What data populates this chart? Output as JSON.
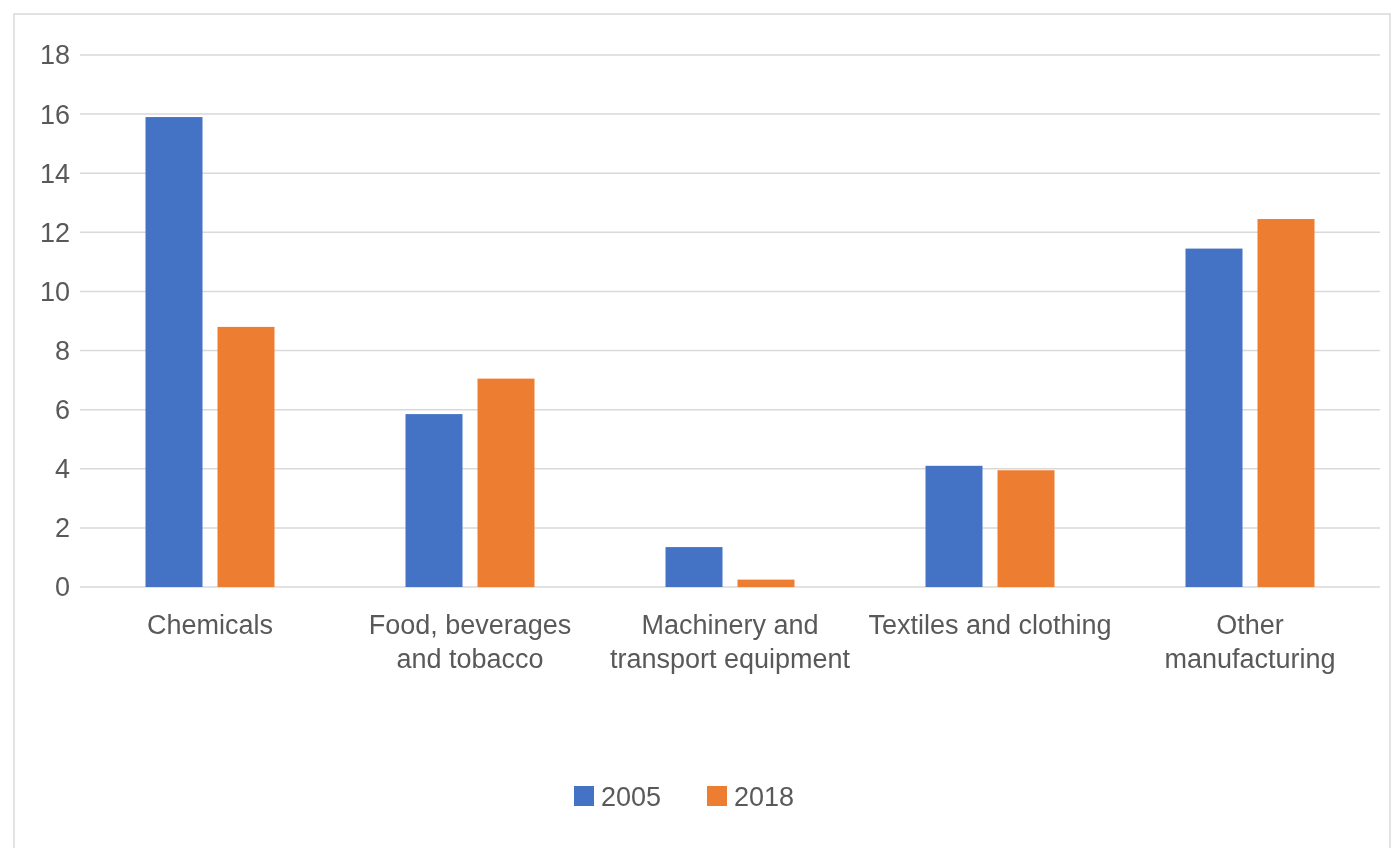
{
  "chart_data": {
    "type": "bar",
    "categories": [
      "Chemicals",
      "Food, beverages and tobacco",
      "Machinery and transport equipment",
      "Textiles and clothing",
      "Other manufacturing"
    ],
    "series": [
      {
        "name": "2005",
        "color": "#4472c4",
        "values": [
          15.9,
          5.85,
          1.35,
          4.1,
          11.45
        ]
      },
      {
        "name": "2018",
        "color": "#ed7d31",
        "values": [
          8.8,
          7.05,
          0.25,
          3.95,
          12.45
        ]
      }
    ],
    "ylim": [
      0,
      18
    ],
    "yticks": [
      0,
      2,
      4,
      6,
      8,
      10,
      12,
      14,
      16,
      18
    ],
    "grid": "y",
    "legend": "bottom"
  }
}
